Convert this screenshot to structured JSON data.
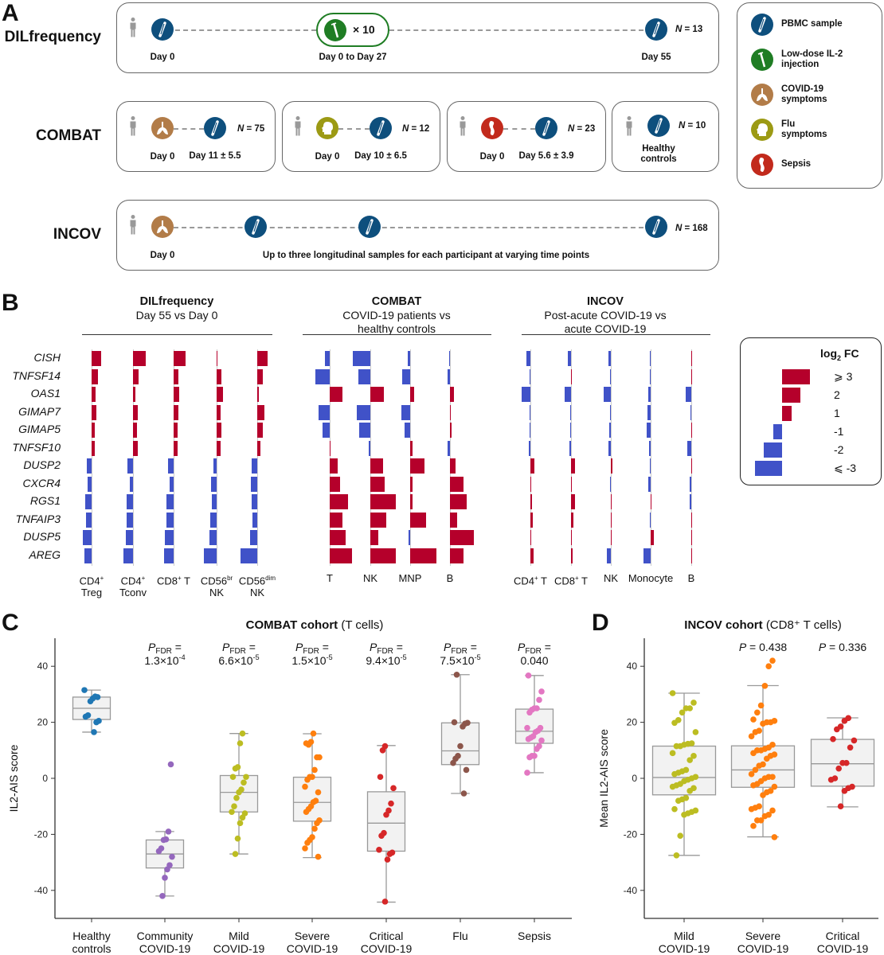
{
  "panel_labels": {
    "a": "A",
    "b": "B",
    "c": "C",
    "d": "D"
  },
  "panel_a": {
    "dil": {
      "label": "DILfrequency",
      "day0": "Day 0",
      "injection_count": "× 10",
      "injection_period": "Day 0 to Day 27",
      "end_day": "Day 55",
      "n": "N = 13"
    },
    "combat": {
      "label": "COMBAT",
      "groups": [
        {
          "symptom": "covid",
          "day0": "Day 0",
          "sample_day": "Day 11 ± 5.5",
          "n": "N = 75"
        },
        {
          "symptom": "flu",
          "day0": "Day 0",
          "sample_day": "Day 10 ± 6.5",
          "n": "N = 12"
        },
        {
          "symptom": "sepsis",
          "day0": "Day 0",
          "sample_day": "Day 5.6 ± 3.9",
          "n": "N = 23"
        },
        {
          "symptom": "healthy",
          "caption_1": "Healthy",
          "caption_2": "controls",
          "n": "N = 10"
        }
      ]
    },
    "incov": {
      "label": "INCOV",
      "day0": "Day 0",
      "note": "Up to three longitudinal samples for each participant at varying time points",
      "n": "N = 168"
    },
    "legend": [
      {
        "icon": "pbmc-sample-icon",
        "line1": "PBMC sample",
        "line2": ""
      },
      {
        "icon": "il2-injection-icon",
        "line1": "Low-dose IL-2",
        "line2": "injection"
      },
      {
        "icon": "covid-lungs-icon",
        "line1": "COVID-19",
        "line2": "symptoms"
      },
      {
        "icon": "flu-head-icon",
        "line1": "Flu",
        "line2": "symptoms"
      },
      {
        "icon": "sepsis-icon",
        "line1": "Sepsis",
        "line2": ""
      }
    ],
    "colors": {
      "pbmc": "#0e4f7d",
      "injection": "#1f7d24",
      "covid": "#b27c48",
      "flu": "#9c9a14",
      "sepsis": "#c22a1c"
    }
  },
  "chart_data": [
    {
      "type": "bar",
      "panel": "B",
      "genes": [
        "CISH",
        "TNFSF14",
        "OAS1",
        "GIMAP7",
        "GIMAP5",
        "TNFSF10",
        "DUSP2",
        "CXCR4",
        "RGS1",
        "TNFAIP3",
        "DUSP5",
        "AREG"
      ],
      "colors": {
        "up": "#b5002b",
        "down": "#4052c8"
      },
      "groups": [
        {
          "title": "DILfrequency",
          "subtitle_1": "Day 55 vs Day 0",
          "subtitle_2": "",
          "columns": [
            {
              "label_1": "CD4",
              "sup_1": "+",
              "label_1b": "",
              "label_2": "Treg",
              "values": [
                1.0,
                0.7,
                0.4,
                0.5,
                0.35,
                0.35,
                -0.5,
                -0.4,
                -0.7,
                -0.65,
                -0.95,
                -0.8
              ]
            },
            {
              "label_1": "CD4",
              "sup_1": "+",
              "label_1b": "",
              "label_2": "Tconv",
              "values": [
                1.35,
                0.65,
                0.25,
                0.55,
                0.4,
                0.5,
                -0.6,
                -0.35,
                -0.7,
                -0.7,
                -0.8,
                -1.05
              ]
            },
            {
              "label_1": "CD8",
              "sup_1": "+",
              "label_1b": " T",
              "label_2": "",
              "values": [
                1.3,
                0.5,
                0.65,
                0.55,
                0.45,
                0.45,
                -0.6,
                -0.45,
                -0.8,
                -0.8,
                -0.95,
                -1.05
              ]
            },
            {
              "label_1": "CD56",
              "sup_1": "br",
              "label_1b": "",
              "label_2": "NK",
              "values": [
                0.1,
                0.5,
                0.7,
                0.45,
                0.5,
                0.4,
                -0.35,
                -0.6,
                -0.5,
                -0.7,
                -0.8,
                -1.4
              ]
            },
            {
              "label_1": "CD56",
              "sup_1": "dim",
              "label_1b": "",
              "label_2": "NK",
              "values": [
                1.15,
                0.6,
                0.15,
                0.8,
                0.65,
                0.35,
                -0.65,
                -0.7,
                -0.65,
                -0.5,
                -0.75,
                -1.8
              ]
            }
          ]
        },
        {
          "title": "COMBAT",
          "subtitle_1": "COVID-19 patients vs",
          "subtitle_2": "healthy controls",
          "columns": [
            {
              "label_1": "T",
              "sup_1": "",
              "label_1b": "",
              "label_2": "",
              "values": [
                -0.5,
                -1.6,
                1.4,
                -1.2,
                -0.8,
                0.0,
                0.9,
                1.15,
                2.0,
                1.4,
                1.7,
                2.4
              ]
            },
            {
              "label_1": "NK",
              "sup_1": "",
              "label_1b": "",
              "label_2": "",
              "values": [
                -1.95,
                -1.3,
                1.45,
                -1.5,
                -1.2,
                -0.15,
                1.35,
                1.6,
                2.8,
                1.75,
                0.85,
                2.8
              ]
            },
            {
              "label_1": "MNP",
              "sup_1": "",
              "label_1b": "",
              "label_2": "",
              "values": [
                -0.25,
                -0.9,
                0.4,
                -1.0,
                -0.6,
                0.3,
                1.6,
                0.3,
                0.3,
                1.7,
                -0.2,
                2.85
              ]
            },
            {
              "label_1": "B",
              "sup_1": "",
              "label_1b": "",
              "label_2": "",
              "values": [
                -0.1,
                -0.25,
                0.45,
                0.0,
                0.15,
                -0.3,
                0.65,
                1.45,
                1.8,
                0.75,
                2.65,
                1.5
              ]
            }
          ]
        },
        {
          "title": "INCOV",
          "subtitle_1": "Post-acute COVID-19 vs",
          "subtitle_2": "acute COVID-19",
          "columns": [
            {
              "label_1": "CD4",
              "sup_1": "+",
              "label_1b": " T",
              "label_2": "",
              "values": [
                -0.45,
                -0.1,
                -0.95,
                -0.1,
                -0.1,
                -0.2,
                0.45,
                0.05,
                0.2,
                0.25,
                0.1,
                0.35
              ]
            },
            {
              "label_1": "CD8",
              "sup_1": "+",
              "label_1b": " T",
              "label_2": "",
              "values": [
                -0.35,
                0.05,
                -0.7,
                -0.1,
                -0.1,
                -0.15,
                0.4,
                0.1,
                0.4,
                0.25,
                0.05,
                0.2
              ]
            },
            {
              "label_1": "NK",
              "sup_1": "",
              "label_1b": "",
              "label_2": "",
              "values": [
                -0.25,
                -0.05,
                -0.8,
                -0.1,
                -0.2,
                -0.3,
                0.15,
                -0.1,
                0.1,
                0.1,
                0.1,
                -0.4
              ]
            },
            {
              "label_1": "Monocyte",
              "sup_1": "",
              "label_1b": "",
              "label_2": "",
              "values": [
                -0.1,
                -0.1,
                -0.25,
                -0.35,
                -0.4,
                -0.15,
                -0.05,
                -0.3,
                0.1,
                -0.03,
                0.35,
                -0.8
              ]
            },
            {
              "label_1": "B",
              "sup_1": "",
              "label_1b": "",
              "label_2": "",
              "values": [
                0.0,
                0.0,
                -0.6,
                -0.05,
                0.0,
                -0.4,
                0.1,
                -0.15,
                -0.15,
                0.0,
                0.0,
                0.1
              ]
            }
          ]
        }
      ],
      "legend": {
        "title": "log",
        "title_sub": "2",
        "title_rest": " FC",
        "entries": [
          {
            "label": "⩾ 3",
            "value": 3
          },
          {
            "label": "2",
            "value": 2
          },
          {
            "label": "1",
            "value": 1
          },
          {
            "label": "-1",
            "value": -1
          },
          {
            "label": "-2",
            "value": -2
          },
          {
            "label": "⩽ -3",
            "value": -3
          }
        ]
      }
    },
    {
      "type": "box",
      "panel": "C",
      "title": "COMBAT cohort",
      "title_note": "(T cells)",
      "ylabel": "IL2-AIS score",
      "ylim": [
        -50,
        50
      ],
      "yticks": [
        40,
        20,
        0,
        -20,
        -40
      ],
      "groups": [
        {
          "label_1": "Healthy",
          "label_2": "controls",
          "color": "#1f77b4",
          "p": null,
          "box": {
            "whislo": 16.5,
            "q1": 21,
            "med": 25,
            "q3": 29,
            "whishi": 31.5
          },
          "points": [
            31.5,
            29,
            29.2,
            28.5,
            27.5,
            22.5,
            22,
            20.5,
            20,
            16.5
          ]
        },
        {
          "label_1": "Community",
          "label_2": "COVID-19",
          "color": "#9467bd",
          "p": {
            "sym": "P",
            "sub": "FDR",
            "eq": " =",
            "mant": "1.3×10",
            "exp": "-4"
          },
          "box": {
            "whislo": -42,
            "q1": -32,
            "med": -27,
            "q3": -22,
            "whishi": -19
          },
          "points": [
            5,
            -19,
            -21.8,
            -22,
            -25,
            -26,
            -28,
            -31,
            -32.5,
            -35.5,
            -42
          ]
        },
        {
          "label_1": "Mild",
          "label_2": "COVID-19",
          "color": "#bcbd22",
          "p": {
            "sym": "P",
            "sub": "FDR",
            "eq": " =",
            "mant": "6.6×10",
            "exp": "-5"
          },
          "box": {
            "whislo": -27,
            "q1": -12,
            "med": -5,
            "q3": 1,
            "whishi": 16
          },
          "points": [
            16,
            12.5,
            4,
            3.5,
            0.5,
            0.5,
            -1.5,
            -4,
            -5,
            -7,
            -10,
            -12,
            -12.5,
            -14,
            -16,
            -21.5,
            -27
          ]
        },
        {
          "label_1": "Severe",
          "label_2": "COVID-19",
          "color": "#ff7f0e",
          "p": {
            "sym": "P",
            "sub": "FDR",
            "eq": " =",
            "mant": "1.5×10",
            "exp": "-5"
          },
          "box": {
            "whislo": -28.3,
            "q1": -15.3,
            "med": -8.6,
            "q3": 0.4,
            "whishi": 15.9
          },
          "points": [
            16,
            13,
            12,
            12.5,
            7.5,
            7.5,
            3,
            0.5,
            0.5,
            -0.5,
            -3,
            -5,
            -8,
            -8.5,
            -10,
            -11,
            -12,
            -15,
            -16,
            -18,
            -21,
            -22,
            -23,
            -25,
            -28
          ]
        },
        {
          "label_1": "Critical",
          "label_2": "COVID-19",
          "color": "#d62728",
          "p": {
            "sym": "P",
            "sub": "FDR",
            "eq": " =",
            "mant": "9.4×10",
            "exp": "-5"
          },
          "box": {
            "whislo": -44.2,
            "q1": -26,
            "med": -16,
            "q3": -4.8,
            "whishi": 11.7
          },
          "points": [
            11.5,
            10,
            0.5,
            -3.5,
            -9,
            -11.5,
            -13,
            -19.5,
            -20.5,
            -25.5,
            -26.5,
            -27,
            -29,
            -44
          ]
        },
        {
          "label_1": "Flu",
          "label_2": "",
          "color": "#8c564b",
          "p": {
            "sym": "P",
            "sub": "FDR",
            "eq": " =",
            "mant": "7.5×10",
            "exp": "-5"
          },
          "box": {
            "whislo": -5.4,
            "q1": 4.9,
            "med": 9.8,
            "q3": 19.8,
            "whishi": 37
          },
          "points": [
            37,
            20,
            19.8,
            19.5,
            18.5,
            11.5,
            8,
            7,
            5.5,
            3,
            -5.4
          ]
        },
        {
          "label_1": "Sepsis",
          "label_2": "",
          "color": "#e377c2",
          "p": {
            "sym": "P",
            "sub": "FDR",
            "eq": " =",
            "mant": "0.040",
            "exp": ""
          },
          "box": {
            "whislo": 2,
            "q1": 12.5,
            "med": 16.8,
            "q3": 24.7,
            "whishi": 36.7
          },
          "points": [
            36.7,
            31,
            28,
            25,
            25,
            24.5,
            23.5,
            18,
            18,
            17,
            16.5,
            15,
            14.5,
            14,
            13.5,
            11.5,
            10.5,
            8,
            8,
            7.5,
            2
          ]
        }
      ]
    },
    {
      "type": "box",
      "panel": "D",
      "title": "INCOV cohort",
      "title_note": "(CD8⁺ T cells)",
      "ylabel": "Mean IL2-AIS score",
      "ylim": [
        -50,
        50
      ],
      "yticks": [
        40,
        20,
        0,
        -20,
        -40
      ],
      "groups": [
        {
          "label_1": "Mild",
          "label_2": "COVID-19",
          "color": "#bcbd22",
          "p": null,
          "box": {
            "whislo": -27.5,
            "q1": -5.9,
            "med": 0.3,
            "q3": 11.5,
            "whishi": 30.4
          },
          "points": [
            30.4,
            27,
            25,
            25,
            23.5,
            20.8,
            19.8,
            16.5,
            12.5,
            12.3,
            12,
            11.5,
            11.5,
            9,
            8,
            6.5,
            3,
            2.5,
            2,
            1.5,
            0.5,
            0,
            -0.5,
            -1,
            -2,
            -2.5,
            -3,
            -3.5,
            -4.5,
            -7,
            -7.5,
            -8,
            -11,
            -11.5,
            -12,
            -12.5,
            -13,
            -20.5,
            -27.5
          ]
        },
        {
          "label_1": "Severe",
          "label_2": "COVID-19",
          "color": "#ff7f0e",
          "p": {
            "sym": "P",
            "sub": "",
            "eq": " = ",
            "mant": "0.438",
            "exp": ""
          },
          "box": {
            "whislo": -20.9,
            "q1": -3.2,
            "med": 3,
            "q3": 11.6,
            "whishi": 33.1
          },
          "points": [
            42,
            40,
            33,
            26,
            23.5,
            21,
            20.5,
            20,
            20,
            19.5,
            17,
            16.5,
            15,
            12,
            11,
            10.5,
            10,
            10,
            9,
            8.5,
            8,
            7,
            5,
            4.5,
            3,
            1.5,
            0.5,
            0.5,
            0,
            -1,
            -2,
            -2.5,
            -3,
            -4.5,
            -5,
            -6,
            -10,
            -10.5,
            -11,
            -11.5,
            -13,
            -13.5,
            -15,
            -15,
            -17,
            -21
          ]
        },
        {
          "label_1": "Critical",
          "label_2": "COVID-19",
          "color": "#d62728",
          "p": {
            "sym": "P",
            "sub": "",
            "eq": " = ",
            "mant": "0.336",
            "exp": ""
          },
          "box": {
            "whislo": -10.2,
            "q1": -2.8,
            "med": 5.2,
            "q3": 13.9,
            "whishi": 21.6
          },
          "points": [
            21.5,
            20.5,
            18.5,
            17.5,
            14,
            13.5,
            11,
            5.5,
            5.5,
            3.5,
            0,
            -0.5,
            -3,
            -3.5,
            -4.5,
            -10
          ]
        }
      ]
    }
  ]
}
